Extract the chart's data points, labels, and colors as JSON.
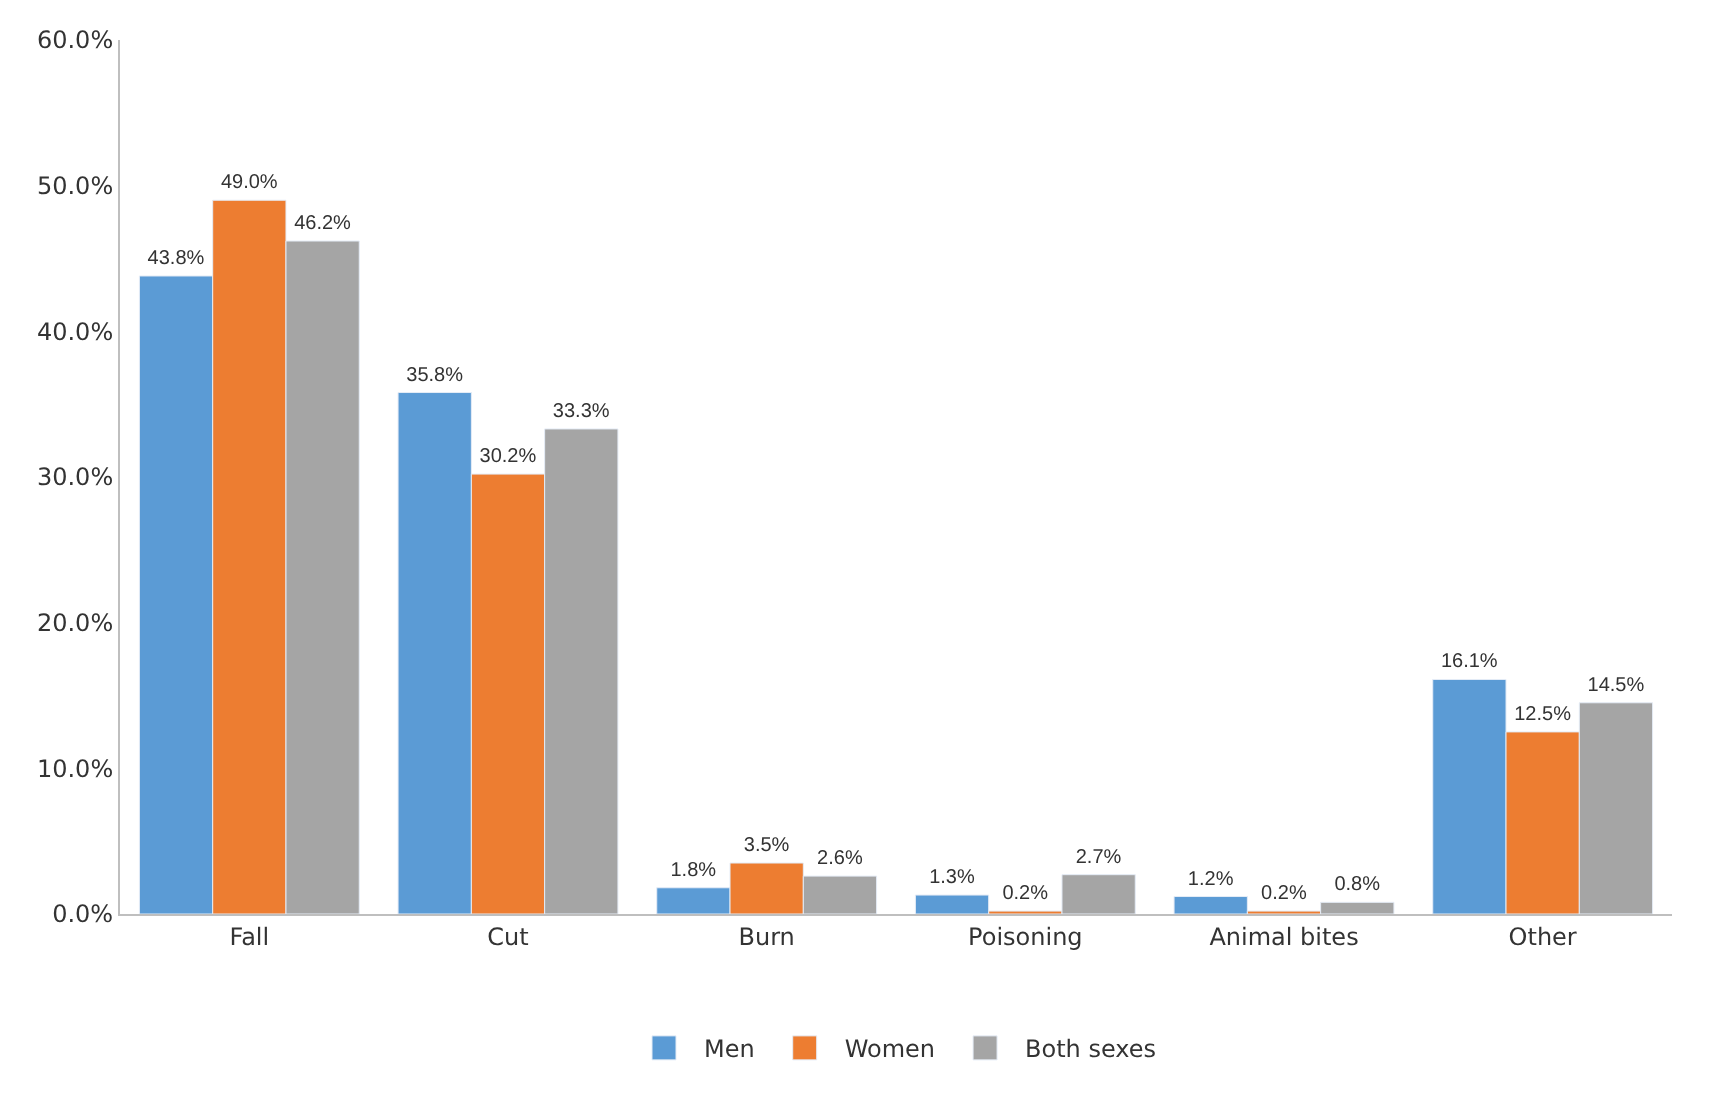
{
  "chart_data": {
    "type": "bar",
    "categories": [
      "Fall",
      "Cut",
      "Burn",
      "Poisoning",
      "Animal bites",
      "Other"
    ],
    "series": [
      {
        "name": "Men",
        "color": "#5b9bd5",
        "values": [
          43.8,
          35.8,
          1.8,
          1.3,
          1.2,
          16.1
        ],
        "value_labels": [
          "43.8%",
          "35.8%",
          "1.8%",
          "1.3%",
          "1.2%",
          "16.1%"
        ]
      },
      {
        "name": "Women",
        "color": "#ed7d31",
        "values": [
          49.0,
          30.2,
          3.5,
          0.2,
          0.2,
          12.5
        ],
        "value_labels": [
          "49.0%",
          "30.2%",
          "3.5%",
          "0.2%",
          "0.2%",
          "12.5%"
        ]
      },
      {
        "name": "Both sexes",
        "color": "#a5a5a5",
        "values": [
          46.2,
          33.3,
          2.6,
          2.7,
          0.8,
          14.5
        ],
        "value_labels": [
          "46.2%",
          "33.3%",
          "2.6%",
          "2.7%",
          "0.8%",
          "14.5%"
        ]
      }
    ],
    "ylim": [
      0,
      60
    ],
    "yticks": [
      {
        "value": 0,
        "label": "0.0%"
      },
      {
        "value": 10,
        "label": "10.0%"
      },
      {
        "value": 20,
        "label": "20.0%"
      },
      {
        "value": 30,
        "label": "30.0%"
      },
      {
        "value": 40,
        "label": "40.0%"
      },
      {
        "value": 50,
        "label": "50.0%"
      },
      {
        "value": 60,
        "label": "60.0%"
      }
    ],
    "legend": "bottom"
  }
}
